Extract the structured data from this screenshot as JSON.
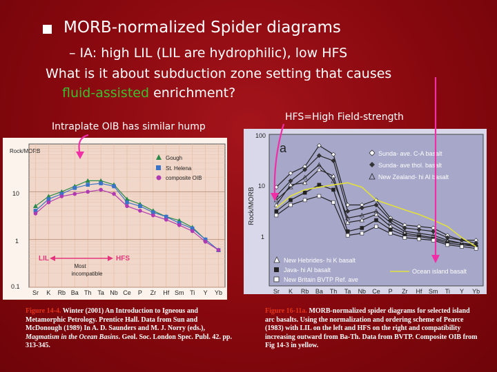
{
  "slide": {
    "title": "MORB-normalized Spider diagrams",
    "sub_bullet": "– IA: high LIL (LIL are hydrophilic), low HFS",
    "question_line1": "What is it about subduction zone setting that causes",
    "question_highlight": "fluid-assisted",
    "question_rest": " enrichment?",
    "left_caption": "Intraplate OIB has similar hump",
    "right_caption": "HFS=High Field-strength"
  },
  "left_chart": {
    "ylabel": "Rock/MORB",
    "yticks": [
      "10",
      "1",
      "0.1"
    ],
    "elements": [
      "Sr",
      "K",
      "Rb",
      "Ba",
      "Th",
      "Ta",
      "Nb",
      "Ce",
      "P",
      "Zr",
      "Hf",
      "Sm",
      "Ti",
      "Y",
      "Yb"
    ],
    "legend": [
      "Gough",
      "St. Helena",
      "composite OIB"
    ],
    "lil_label": "LIL",
    "hfs_label": "HFS",
    "most_incompatible": "Most\nincompatible",
    "most_line1": "Most",
    "most_line2": "incompatible"
  },
  "right_chart": {
    "panel_label": "a",
    "ylabel": "Rock/MORB",
    "yticks": [
      "100",
      "10",
      "1"
    ],
    "elements": [
      "Sr",
      "K",
      "Rb",
      "Ba",
      "Th",
      "Ta",
      "Nb",
      "Ce",
      "P",
      "Zr",
      "Hf",
      "Sm",
      "Ti",
      "Y",
      "Yb"
    ],
    "legend_top": [
      "Sunda- ave. C-A basalt",
      "Sunda- ave thol. basalt",
      "New Zealand- hi Al basalt"
    ],
    "legend_bottom": [
      "New Hebrides- hi K basalt",
      "Java- hi Al basalt",
      "New Britain BVTP Ref. ave"
    ],
    "oib_label": "Ocean island basalt"
  },
  "chart_data": [
    {
      "type": "line",
      "title": "",
      "xlabel": "",
      "ylabel": "Rock/MORB",
      "yscale": "log",
      "ylim": [
        0.1,
        100
      ],
      "categories": [
        "Sr",
        "K",
        "Rb",
        "Ba",
        "Th",
        "Ta",
        "Nb",
        "Ce",
        "P",
        "Zr",
        "Hf",
        "Sm",
        "Ti",
        "Y",
        "Yb"
      ],
      "series": [
        {
          "name": "Gough",
          "values": [
            5,
            8,
            10,
            13,
            17,
            17,
            14,
            7,
            5.5,
            4,
            3,
            2.5,
            1.8,
            1,
            0.6
          ]
        },
        {
          "name": "St. Helena",
          "values": [
            4,
            7,
            9,
            12,
            14,
            15,
            13,
            6,
            5,
            3.7,
            3,
            2.2,
            1.7,
            1,
            0.6
          ]
        },
        {
          "name": "composite OIB",
          "values": [
            3.5,
            6,
            8,
            9,
            10,
            11,
            9,
            5,
            4,
            3.2,
            2.6,
            2,
            1.5,
            0.9,
            0.6
          ]
        }
      ]
    },
    {
      "type": "line",
      "title": "a",
      "xlabel": "",
      "ylabel": "Rock/MORB",
      "yscale": "log",
      "ylim": [
        0.1,
        100
      ],
      "categories": [
        "Sr",
        "K",
        "Rb",
        "Ba",
        "Th",
        "Ta",
        "Nb",
        "Ce",
        "P",
        "Zr",
        "Hf",
        "Sm",
        "Ti",
        "Y",
        "Yb"
      ],
      "series": [
        {
          "name": "Sunda- ave. C-A basalt",
          "values": [
            9,
            17,
            23,
            60,
            40,
            4,
            4,
            5,
            2.2,
            1.6,
            1.5,
            1.4,
            1.0,
            0.8,
            0.8
          ]
        },
        {
          "name": "Sunda- ave thol. basalt",
          "values": [
            6,
            12,
            20,
            38,
            30,
            3,
            3.5,
            4,
            2.0,
            1.4,
            1.3,
            1.2,
            0.9,
            0.8,
            0.7
          ]
        },
        {
          "name": "New Zealand- hi Al basalt",
          "values": [
            5,
            9,
            14,
            25,
            12,
            2.2,
            2.5,
            3,
            1.8,
            1.2,
            1.1,
            1.0,
            0.8,
            0.7,
            0.65
          ]
        },
        {
          "name": "New Hebrides- hi K basalt",
          "values": [
            4,
            10,
            11,
            20,
            15,
            1.8,
            2,
            2.6,
            1.5,
            1.1,
            1.0,
            0.9,
            0.75,
            0.7,
            0.6
          ]
        },
        {
          "name": "Java- hi Al basalt",
          "values": [
            3,
            5,
            7,
            10,
            8,
            1.2,
            1.4,
            2,
            1.3,
            1.0,
            0.95,
            0.85,
            0.7,
            0.65,
            0.6
          ]
        },
        {
          "name": "New Britain BVTP Ref. ave",
          "values": [
            2.5,
            4,
            5,
            6,
            4.5,
            1,
            1.1,
            1.5,
            1.1,
            0.9,
            0.85,
            0.8,
            0.65,
            0.6,
            0.55
          ]
        },
        {
          "name": "Ocean island basalt",
          "values": [
            3.5,
            6,
            8,
            9,
            10,
            11,
            9,
            5,
            4,
            3.2,
            2.6,
            2,
            1.5,
            0.9,
            0.6
          ]
        }
      ]
    }
  ],
  "figures": {
    "left_num": "Figure 14-4.",
    "left_text": " Winter (2001) An Introduction to Igneous and Metamorphic Petrology. Prentice Hall. Data from Sun and McDonough (1989) In A. D. Saunders and M. J. Norry (eds.), ",
    "left_italic": "Magmatism in the Ocean Basins",
    "left_tail": ". Geol. Soc. London Spec. Publ. 42. pp. 313-345.",
    "right_num": "Figure 16-11a.",
    "right_text": " MORB-normalized spider diagrams for selected island arc basalts. Using the normalization and ordering scheme of Pearce (1983) with LIL on the left and HFS on the right and compatibility increasing outward from Ba-Th. Data from BVTP. Composite OIB from Fig 14-3 in yellow."
  },
  "colors": {
    "background": "#9b0f16",
    "left_plot_bg": "#f1d7c9",
    "right_plot_bg": "#a6a7c9",
    "arrow": "#f02ea6",
    "highlight": "#3dbf2f",
    "oib_line": "#e3e13a"
  }
}
